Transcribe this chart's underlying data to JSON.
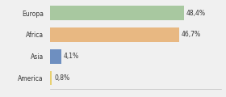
{
  "categories": [
    "Europa",
    "Africa",
    "Asia",
    "America"
  ],
  "values": [
    48.4,
    46.7,
    4.1,
    0.8
  ],
  "labels": [
    "48,4%",
    "46,7%",
    "4,1%",
    "0,8%"
  ],
  "bar_colors": [
    "#a8c8a0",
    "#e8b882",
    "#6e8fc0",
    "#e8d070"
  ],
  "background_color": "#f0f0f0",
  "xlim": [
    0,
    62
  ],
  "bar_height": 0.65,
  "label_fontsize": 5.5,
  "category_fontsize": 5.5
}
